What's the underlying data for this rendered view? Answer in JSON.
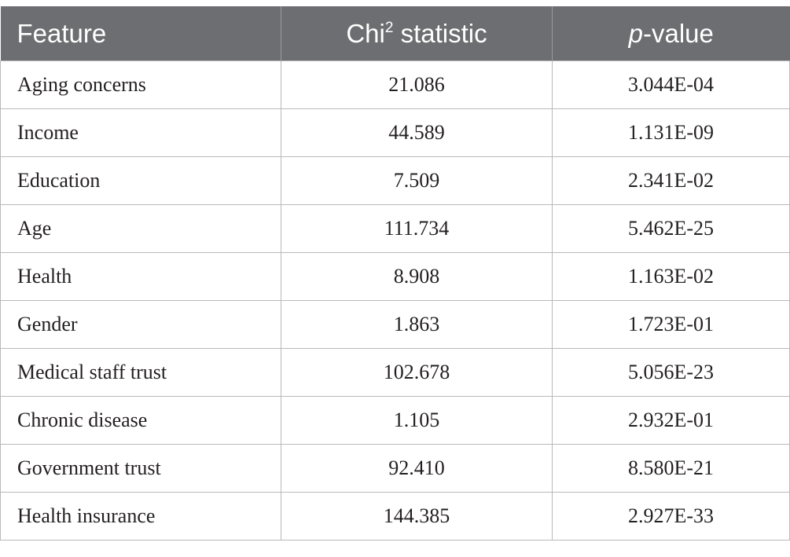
{
  "table": {
    "headers": {
      "feature": "Feature",
      "chi_main": "Chi",
      "chi_sup": "2",
      "chi_rest": " statistic",
      "p_italic": "p",
      "p_rest": "-value"
    },
    "rows": [
      {
        "feature": "Aging concerns",
        "chi2": "21.086",
        "p": "3.044E-04"
      },
      {
        "feature": "Income",
        "chi2": "44.589",
        "p": "1.131E-09"
      },
      {
        "feature": "Education",
        "chi2": "7.509",
        "p": "2.341E-02"
      },
      {
        "feature": "Age",
        "chi2": "111.734",
        "p": "5.462E-25"
      },
      {
        "feature": "Health",
        "chi2": "8.908",
        "p": "1.163E-02"
      },
      {
        "feature": "Gender",
        "chi2": "1.863",
        "p": "1.723E-01"
      },
      {
        "feature": "Medical staff trust",
        "chi2": "102.678",
        "p": "5.056E-23"
      },
      {
        "feature": "Chronic disease",
        "chi2": "1.105",
        "p": "2.932E-01"
      },
      {
        "feature": "Government trust",
        "chi2": "92.410",
        "p": "8.580E-21"
      },
      {
        "feature": "Health insurance",
        "chi2": "144.385",
        "p": "2.927E-33"
      }
    ]
  },
  "colors": {
    "header_bg": "#6d6e71",
    "header_text": "#ffffff",
    "grid": "#b9b9bb",
    "body_text": "#231f20"
  }
}
